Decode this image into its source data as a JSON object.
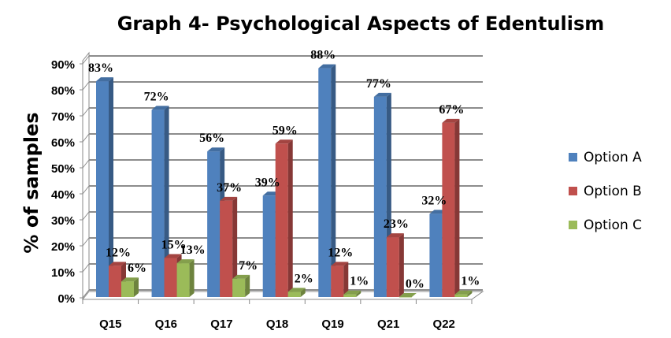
{
  "chart_data": {
    "type": "bar",
    "title": "Graph 4- Psychological Aspects of Edentulism",
    "xlabel": "",
    "ylabel": "% of samples",
    "ylim": [
      0,
      90
    ],
    "yticks": [
      "0%",
      "10%",
      "20%",
      "30%",
      "40%",
      "50%",
      "60%",
      "70%",
      "80%",
      "90%"
    ],
    "categories": [
      "Q15",
      "Q16",
      "Q17",
      "Q18",
      "Q19",
      "Q21",
      "Q22"
    ],
    "series": [
      {
        "name": "Option A",
        "color": "#4F81BD",
        "values": [
          83,
          72,
          56,
          39,
          88,
          77,
          32
        ],
        "labels": [
          "83%",
          "72%",
          "56%",
          "39%",
          "88%",
          "77%",
          "32%"
        ]
      },
      {
        "name": "Option B",
        "color": "#C0504D",
        "values": [
          12,
          15,
          37,
          59,
          12,
          23,
          67
        ],
        "labels": [
          "12%",
          "15%",
          "37%",
          "59%",
          "12%",
          "23%",
          "67%"
        ]
      },
      {
        "name": "Option C",
        "color": "#9BBB59",
        "values": [
          6,
          13,
          7,
          2,
          1,
          0,
          1
        ],
        "labels": [
          "6%",
          "13%",
          "7%",
          "2%",
          "1%",
          "0%",
          "1%"
        ]
      }
    ],
    "grid": true,
    "legend": "right"
  }
}
